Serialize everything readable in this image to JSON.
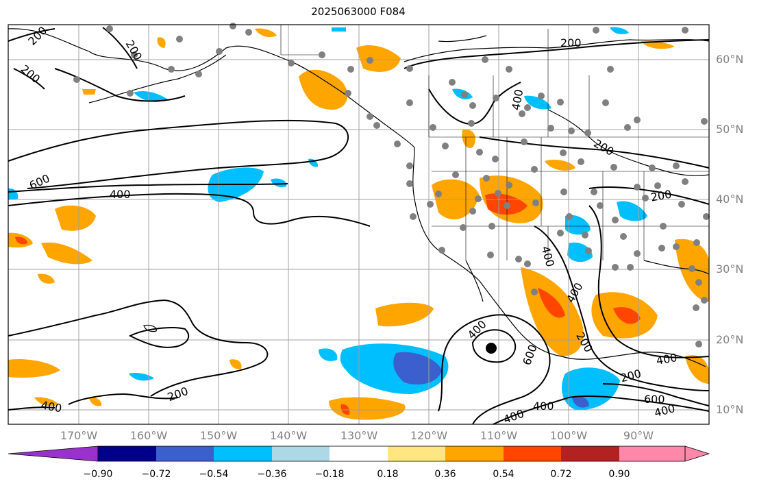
{
  "title": "2025063000 F084",
  "lat_labels": [
    "60°N",
    "50°N",
    "40°N",
    "30°N",
    "20°N",
    "10°N"
  ],
  "lon_labels": [
    "170°W",
    "160°W",
    "150°W",
    "140°W",
    "130°W",
    "120°W",
    "110°W",
    "100°W",
    "90°W"
  ],
  "contour_labels": [
    "200",
    "400",
    "600"
  ],
  "colorbar": {
    "ticks": [
      "−0.90",
      "−0.72",
      "−0.54",
      "−0.36",
      "−0.18",
      "0.18",
      "0.36",
      "0.54",
      "0.72",
      "0.90"
    ],
    "colors": [
      "#9932cc",
      "#00008b",
      "#3b5fcd",
      "#00bfff",
      "#add8e6",
      "#ffffff",
      "#ffe680",
      "#ffa500",
      "#ff4500",
      "#b22222",
      "#ff88aa"
    ]
  },
  "colors": {
    "land_line": "#000000",
    "grid": "#a0a0a0",
    "station": "#808080"
  }
}
